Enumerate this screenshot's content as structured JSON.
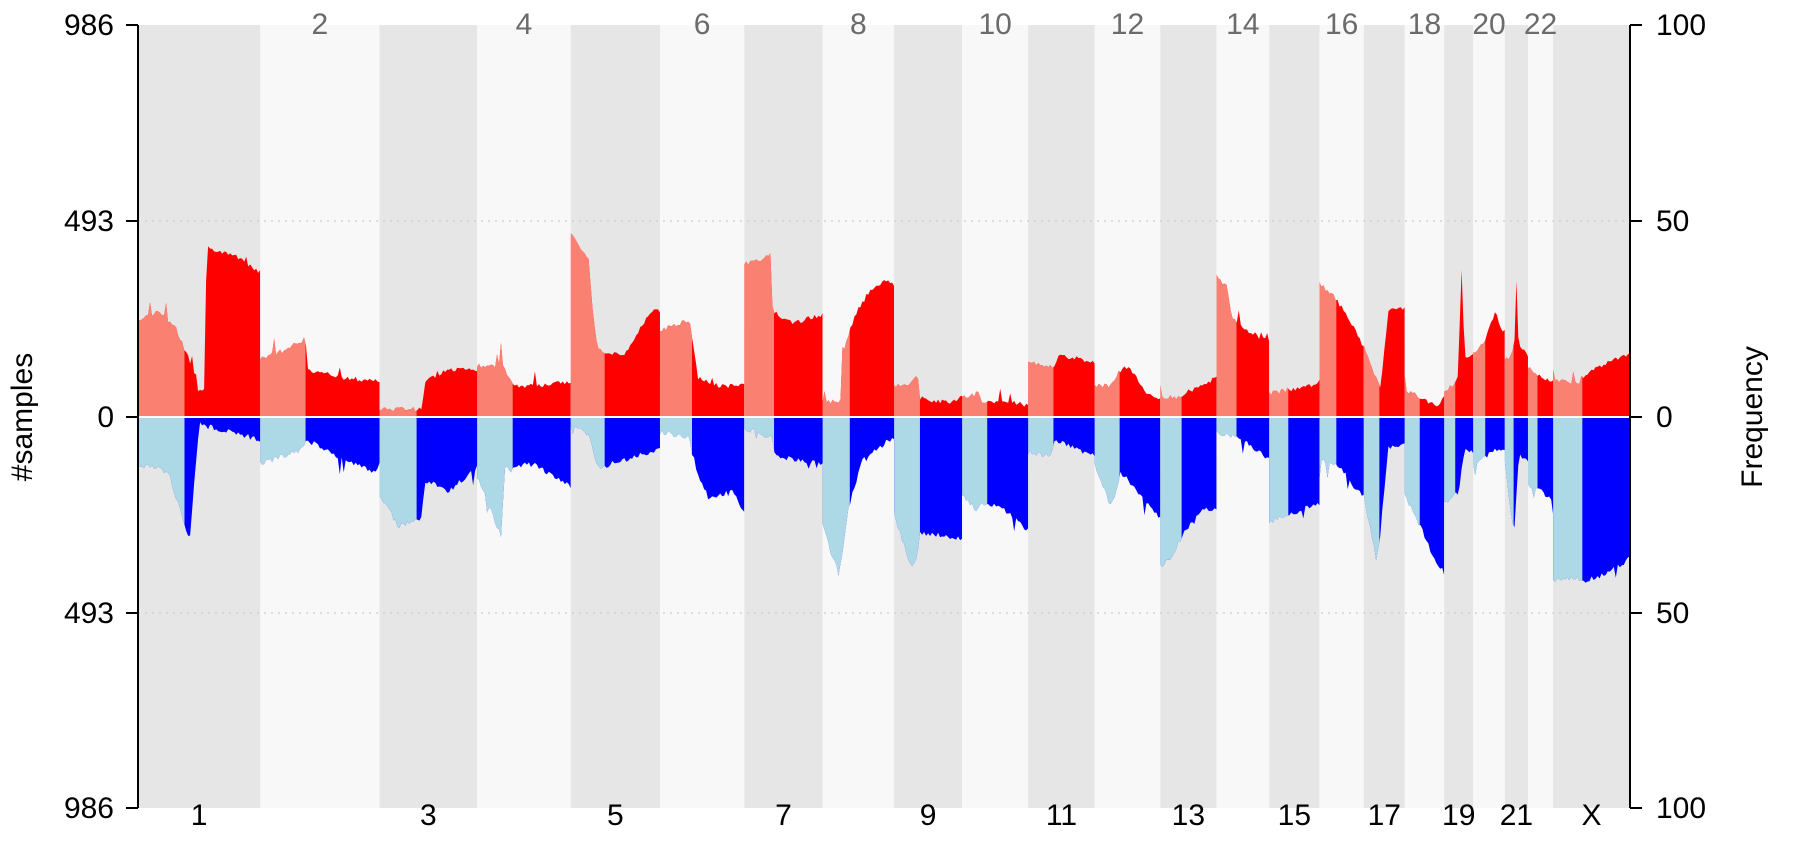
{
  "chart_data": {
    "type": "area",
    "title": "",
    "ylabel_left": "#samples",
    "ylabel_right": "Frequency",
    "left_axis": {
      "ticks": [
        "986",
        "493",
        "0",
        "493",
        "986"
      ],
      "max_samples": 986
    },
    "right_axis": {
      "ticks": [
        "100",
        "50",
        "0",
        "50",
        "100"
      ],
      "max_frequency": 100
    },
    "grid_at_frequency": [
      50
    ],
    "colors": {
      "gain_dark": "#ff0000",
      "gain_light": "#fa8072",
      "loss_dark": "#0000ff",
      "loss_light": "#add8e6",
      "band_dark": "#e6e6e6",
      "band_light": "#f8f8f8",
      "grid": "#cccccc",
      "baseline": "#ffffff",
      "label_top": "#6b6b6b"
    },
    "chromosomes": [
      {
        "name": "1",
        "label": "1",
        "label_pos": "bottom",
        "size": 248,
        "gain": [
          [
            0,
            0.25
          ],
          [
            0.18,
            0.27
          ],
          [
            0.32,
            0.22
          ],
          [
            0.48,
            0.1
          ],
          [
            0.49,
            0.07
          ],
          [
            0.55,
            0.07
          ],
          [
            0.56,
            0.44
          ],
          [
            0.6,
            0.43
          ],
          [
            0.8,
            0.41
          ],
          [
            1,
            0.37
          ]
        ],
        "loss": [
          [
            0,
            0.12
          ],
          [
            0.25,
            0.14
          ],
          [
            0.42,
            0.32
          ],
          [
            0.5,
            0.02
          ],
          [
            0.8,
            0.04
          ],
          [
            1,
            0.06
          ]
        ]
      },
      {
        "name": "2",
        "label": "2",
        "label_pos": "top",
        "size": 242,
        "gain": [
          [
            0,
            0.15
          ],
          [
            0.2,
            0.17
          ],
          [
            0.38,
            0.2
          ],
          [
            0.4,
            0.12
          ],
          [
            0.7,
            0.1
          ],
          [
            1,
            0.09
          ]
        ],
        "loss": [
          [
            0,
            0.12
          ],
          [
            0.3,
            0.09
          ],
          [
            0.4,
            0.06
          ],
          [
            0.7,
            0.11
          ],
          [
            0.95,
            0.14
          ],
          [
            1,
            0.12
          ]
        ]
      },
      {
        "name": "3",
        "label": "3",
        "label_pos": "bottom",
        "size": 198,
        "gain": [
          [
            0,
            0.02
          ],
          [
            0.44,
            0.02
          ],
          [
            0.46,
            0.09
          ],
          [
            0.7,
            0.12
          ],
          [
            1,
            0.12
          ]
        ],
        "loss": [
          [
            0,
            0.2
          ],
          [
            0.2,
            0.28
          ],
          [
            0.44,
            0.26
          ],
          [
            0.46,
            0.16
          ],
          [
            0.7,
            0.19
          ],
          [
            1,
            0.13
          ]
        ]
      },
      {
        "name": "4",
        "label": "4",
        "label_pos": "top",
        "size": 190,
        "gain": [
          [
            0,
            0.13
          ],
          [
            0.25,
            0.13
          ],
          [
            0.26,
            0.24
          ],
          [
            0.27,
            0.13
          ],
          [
            0.4,
            0.08
          ],
          [
            0.6,
            0.08
          ],
          [
            1,
            0.09
          ]
        ],
        "loss": [
          [
            0,
            0.15
          ],
          [
            0.25,
            0.3
          ],
          [
            0.3,
            0.13
          ],
          [
            0.6,
            0.12
          ],
          [
            1,
            0.18
          ]
        ]
      },
      {
        "name": "5",
        "label": "5",
        "label_pos": "bottom",
        "size": 181,
        "gain": [
          [
            0,
            0.47
          ],
          [
            0.2,
            0.4
          ],
          [
            0.24,
            0.28
          ],
          [
            0.3,
            0.17
          ],
          [
            0.6,
            0.16
          ],
          [
            0.9,
            0.27
          ],
          [
            1,
            0.27
          ]
        ],
        "loss": [
          [
            0,
            0.02
          ],
          [
            0.22,
            0.05
          ],
          [
            0.3,
            0.13
          ],
          [
            0.6,
            0.11
          ],
          [
            1,
            0.08
          ]
        ]
      },
      {
        "name": "6",
        "label": "6",
        "label_pos": "top",
        "size": 171,
        "gain": [
          [
            0,
            0.22
          ],
          [
            0.35,
            0.25
          ],
          [
            0.4,
            0.18
          ],
          [
            0.45,
            0.1
          ],
          [
            0.7,
            0.08
          ],
          [
            1,
            0.08
          ]
        ],
        "loss": [
          [
            0,
            0.04
          ],
          [
            0.35,
            0.05
          ],
          [
            0.45,
            0.15
          ],
          [
            0.6,
            0.21
          ],
          [
            0.85,
            0.19
          ],
          [
            1,
            0.24
          ]
        ]
      },
      {
        "name": "7",
        "label": "7",
        "label_pos": "bottom",
        "size": 159,
        "gain": [
          [
            0,
            0.39
          ],
          [
            0.2,
            0.4
          ],
          [
            0.35,
            0.42
          ],
          [
            0.36,
            0.27
          ],
          [
            0.6,
            0.24
          ],
          [
            1,
            0.26
          ]
        ],
        "loss": [
          [
            0,
            0.03
          ],
          [
            0.35,
            0.05
          ],
          [
            0.4,
            0.1
          ],
          [
            0.7,
            0.11
          ],
          [
            1,
            0.12
          ]
        ]
      },
      {
        "name": "8",
        "label": "8",
        "label_pos": "top",
        "size": 145,
        "gain": [
          [
            0,
            0.04
          ],
          [
            0.25,
            0.04
          ],
          [
            0.28,
            0.16
          ],
          [
            0.45,
            0.26
          ],
          [
            0.65,
            0.32
          ],
          [
            0.9,
            0.35
          ],
          [
            1,
            0.34
          ]
        ],
        "loss": [
          [
            0,
            0.27
          ],
          [
            0.22,
            0.4
          ],
          [
            0.3,
            0.32
          ],
          [
            0.35,
            0.24
          ],
          [
            0.55,
            0.11
          ],
          [
            1,
            0.05
          ]
        ]
      },
      {
        "name": "9",
        "label": "9",
        "label_pos": "bottom",
        "size": 138,
        "gain": [
          [
            0,
            0.08
          ],
          [
            0.2,
            0.08
          ],
          [
            0.35,
            0.11
          ],
          [
            0.36,
            0.05
          ],
          [
            0.6,
            0.04
          ],
          [
            0.9,
            0.04
          ],
          [
            1,
            0.05
          ]
        ],
        "loss": [
          [
            0,
            0.25
          ],
          [
            0.25,
            0.38
          ],
          [
            0.35,
            0.35
          ],
          [
            0.36,
            0.3
          ],
          [
            0.6,
            0.3
          ],
          [
            1,
            0.31
          ]
        ]
      },
      {
        "name": "10",
        "label": "10",
        "label_pos": "top",
        "size": 134,
        "gain": [
          [
            0,
            0.05
          ],
          [
            0.25,
            0.06
          ],
          [
            0.3,
            0.04
          ],
          [
            0.6,
            0.04
          ],
          [
            1,
            0.03
          ]
        ],
        "loss": [
          [
            0,
            0.2
          ],
          [
            0.25,
            0.24
          ],
          [
            0.3,
            0.22
          ],
          [
            0.6,
            0.23
          ],
          [
            1,
            0.29
          ]
        ]
      },
      {
        "name": "11",
        "label": "11",
        "label_pos": "bottom",
        "size": 135,
        "gain": [
          [
            0,
            0.14
          ],
          [
            0.25,
            0.13
          ],
          [
            0.4,
            0.13
          ],
          [
            0.45,
            0.16
          ],
          [
            0.7,
            0.15
          ],
          [
            1,
            0.14
          ]
        ],
        "loss": [
          [
            0,
            0.09
          ],
          [
            0.35,
            0.1
          ],
          [
            0.4,
            0.06
          ],
          [
            0.7,
            0.08
          ],
          [
            1,
            0.1
          ]
        ]
      },
      {
        "name": "12",
        "label": "12",
        "label_pos": "top",
        "size": 133,
        "gain": [
          [
            0,
            0.08
          ],
          [
            0.25,
            0.08
          ],
          [
            0.35,
            0.11
          ],
          [
            0.5,
            0.13
          ],
          [
            0.8,
            0.06
          ],
          [
            1,
            0.05
          ]
        ],
        "loss": [
          [
            0,
            0.12
          ],
          [
            0.25,
            0.23
          ],
          [
            0.4,
            0.14
          ],
          [
            0.7,
            0.2
          ],
          [
            1,
            0.26
          ]
        ]
      },
      {
        "name": "13",
        "label": "13",
        "label_pos": "bottom",
        "size": 114,
        "gain": [
          [
            0,
            0.05
          ],
          [
            0.3,
            0.05
          ],
          [
            0.7,
            0.08
          ],
          [
            1,
            0.1
          ]
        ],
        "loss": [
          [
            0,
            0.38
          ],
          [
            0.2,
            0.36
          ],
          [
            0.4,
            0.3
          ],
          [
            0.7,
            0.24
          ],
          [
            1,
            0.23
          ]
        ]
      },
      {
        "name": "14",
        "label": "14",
        "label_pos": "top",
        "size": 107,
        "gain": [
          [
            0,
            0.36
          ],
          [
            0.2,
            0.33
          ],
          [
            0.3,
            0.25
          ],
          [
            0.6,
            0.22
          ],
          [
            1,
            0.19
          ]
        ],
        "loss": [
          [
            0,
            0.04
          ],
          [
            0.4,
            0.05
          ],
          [
            0.6,
            0.07
          ],
          [
            1,
            0.11
          ]
        ]
      },
      {
        "name": "15",
        "label": "15",
        "label_pos": "bottom",
        "size": 102,
        "gain": [
          [
            0,
            0.06
          ],
          [
            0.4,
            0.07
          ],
          [
            0.8,
            0.08
          ],
          [
            1,
            0.09
          ]
        ],
        "loss": [
          [
            0,
            0.27
          ],
          [
            0.3,
            0.25
          ],
          [
            0.6,
            0.24
          ],
          [
            1,
            0.22
          ]
        ]
      },
      {
        "name": "16",
        "label": "16",
        "label_pos": "top",
        "size": 90,
        "gain": [
          [
            0,
            0.34
          ],
          [
            0.3,
            0.31
          ],
          [
            0.5,
            0.28
          ],
          [
            0.8,
            0.22
          ],
          [
            1,
            0.18
          ]
        ],
        "loss": [
          [
            0,
            0.11
          ],
          [
            0.5,
            0.13
          ],
          [
            0.8,
            0.18
          ],
          [
            1,
            0.2
          ]
        ]
      },
      {
        "name": "17",
        "label": "17",
        "label_pos": "bottom",
        "size": 83,
        "gain": [
          [
            0,
            0.18
          ],
          [
            0.3,
            0.1
          ],
          [
            0.4,
            0.07
          ],
          [
            0.6,
            0.27
          ],
          [
            1,
            0.28
          ]
        ],
        "loss": [
          [
            0,
            0.2
          ],
          [
            0.3,
            0.36
          ],
          [
            0.4,
            0.3
          ],
          [
            0.6,
            0.08
          ],
          [
            1,
            0.07
          ]
        ]
      },
      {
        "name": "18",
        "label": "18",
        "label_pos": "top",
        "size": 80,
        "gain": [
          [
            0,
            0.07
          ],
          [
            0.4,
            0.05
          ],
          [
            0.8,
            0.03
          ],
          [
            1,
            0.05
          ]
        ],
        "loss": [
          [
            0,
            0.2
          ],
          [
            0.4,
            0.28
          ],
          [
            0.7,
            0.35
          ],
          [
            1,
            0.4
          ]
        ]
      },
      {
        "name": "19",
        "label": "19",
        "label_pos": "bottom",
        "size": 59,
        "gain": [
          [
            0,
            0.06
          ],
          [
            0.5,
            0.1
          ],
          [
            0.6,
            0.38
          ],
          [
            0.7,
            0.15
          ],
          [
            1,
            0.16
          ]
        ],
        "loss": [
          [
            0,
            0.22
          ],
          [
            0.5,
            0.19
          ],
          [
            0.7,
            0.08
          ],
          [
            1,
            0.09
          ]
        ]
      },
      {
        "name": "20",
        "label": "20",
        "label_pos": "top",
        "size": 64,
        "gain": [
          [
            0,
            0.16
          ],
          [
            0.4,
            0.2
          ],
          [
            0.7,
            0.27
          ],
          [
            1,
            0.2
          ]
        ],
        "loss": [
          [
            0,
            0.12
          ],
          [
            0.4,
            0.1
          ],
          [
            0.7,
            0.08
          ],
          [
            1,
            0.08
          ]
        ]
      },
      {
        "name": "21",
        "label": "21",
        "label_pos": "bottom",
        "size": 47,
        "gain": [
          [
            0,
            0.14
          ],
          [
            0.4,
            0.17
          ],
          [
            0.5,
            0.35
          ],
          [
            0.6,
            0.18
          ],
          [
            1,
            0.16
          ]
        ],
        "loss": [
          [
            0,
            0.12
          ],
          [
            0.4,
            0.3
          ],
          [
            0.6,
            0.1
          ],
          [
            1,
            0.11
          ]
        ]
      },
      {
        "name": "22",
        "label": "22",
        "label_pos": "top",
        "size": 51,
        "gain": [
          [
            0,
            0.13
          ],
          [
            0.5,
            0.1
          ],
          [
            1,
            0.09
          ]
        ],
        "loss": [
          [
            0,
            0.17
          ],
          [
            0.5,
            0.19
          ],
          [
            1,
            0.21
          ]
        ]
      },
      {
        "name": "X",
        "label": "X",
        "label_pos": "bottom",
        "size": 156,
        "gain": [
          [
            0,
            0.09
          ],
          [
            0.35,
            0.09
          ],
          [
            0.37,
            0.1
          ],
          [
            0.7,
            0.14
          ],
          [
            1,
            0.16
          ]
        ],
        "loss": [
          [
            0,
            0.42
          ],
          [
            0.3,
            0.41
          ],
          [
            0.37,
            0.42
          ],
          [
            0.38,
            0.42
          ],
          [
            0.7,
            0.4
          ],
          [
            1,
            0.36
          ]
        ]
      }
    ]
  }
}
